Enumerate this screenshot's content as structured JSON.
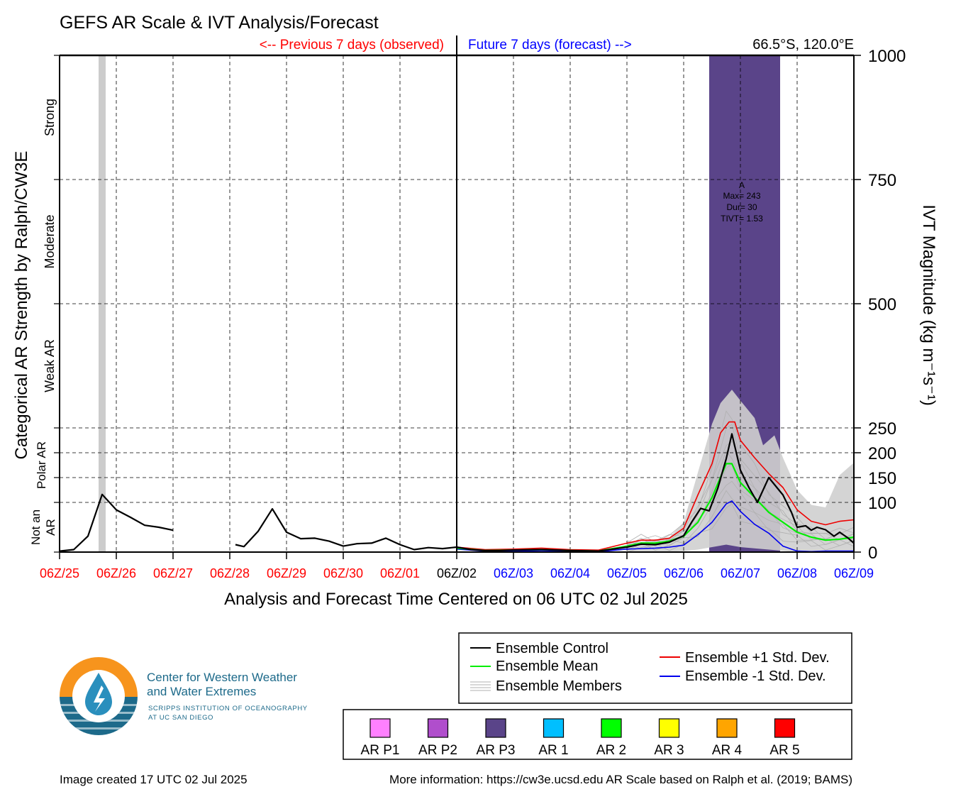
{
  "header": {
    "title": "GEFS AR Scale & IVT Analysis/Forecast",
    "previous_label": "<-- Previous 7 days (observed)",
    "future_label": "Future 7 days (forecast) -->",
    "location": "66.5°S, 120.0°E"
  },
  "colors": {
    "observed": "#ff0000",
    "forecast": "#0000ff",
    "control": "#000000",
    "mean": "#00ee00",
    "plus_std": "#ee0000",
    "minus_std": "#0000ee",
    "members": "#b0b0b0",
    "ar_p3": "#5a4489",
    "analysis_bar": "#cccccc"
  },
  "chart_data": {
    "type": "line",
    "title": "GEFS AR Scale & IVT Analysis/Forecast",
    "xlabel": "Analysis and Forecast Time Centered on 06 UTC 02 Jul 2025",
    "ylabel_left": "Categorical AR Strength by Ralph/CW3E",
    "ylabel_right": "IVT Magnitude (kg m⁻¹s⁻¹)",
    "x_tick_labels": [
      {
        "label": "06Z/25",
        "period": "observed"
      },
      {
        "label": "06Z/26",
        "period": "observed"
      },
      {
        "label": "06Z/27",
        "period": "observed"
      },
      {
        "label": "06Z/28",
        "period": "observed"
      },
      {
        "label": "06Z/29",
        "period": "observed"
      },
      {
        "label": "06Z/30",
        "period": "observed"
      },
      {
        "label": "06Z/01",
        "period": "observed"
      },
      {
        "label": "06Z/02",
        "period": "current"
      },
      {
        "label": "06Z/03",
        "period": "forecast"
      },
      {
        "label": "06Z/04",
        "period": "forecast"
      },
      {
        "label": "06Z/05",
        "period": "forecast"
      },
      {
        "label": "06Z/06",
        "period": "forecast"
      },
      {
        "label": "06Z/07",
        "period": "forecast"
      },
      {
        "label": "06Z/08",
        "period": "forecast"
      },
      {
        "label": "06Z/09",
        "period": "forecast"
      }
    ],
    "x_units": "days relative to 06Z/25",
    "xlim": [
      0,
      14
    ],
    "ylim": [
      0,
      1000
    ],
    "y_tick_labels": [
      "0",
      "100",
      "150",
      "200",
      "250",
      "500",
      "750",
      "1000"
    ],
    "y_ticks": [
      0,
      100,
      150,
      200,
      250,
      500,
      750,
      1000
    ],
    "category_labels": [
      {
        "label": "Not an AR",
        "range": [
          0,
          100
        ]
      },
      {
        "label": "Polar AR",
        "range": [
          100,
          250
        ]
      },
      {
        "label": "Weak AR",
        "range": [
          250,
          500
        ]
      },
      {
        "label": "Moderate",
        "range": [
          500,
          750
        ]
      },
      {
        "label": "Strong",
        "range": [
          750,
          1000
        ]
      }
    ],
    "ar_event": {
      "category": "AR P3",
      "x_range": [
        11.45,
        12.7
      ],
      "label": "A",
      "max": "Max= 243",
      "dur": "Dur= 30",
      "tivt": "TIVT= 1.53"
    },
    "analysis_marker_x": 0.75,
    "series": [
      {
        "name": "Ensemble Control",
        "segments": [
          [
            [
              0,
              2
            ],
            [
              0.25,
              5
            ],
            [
              0.5,
              32
            ],
            [
              0.75,
              116
            ],
            [
              1,
              85
            ],
            [
              1.25,
              70
            ],
            [
              1.5,
              54
            ],
            [
              1.75,
              50
            ],
            [
              2,
              44
            ]
          ],
          [
            [
              3.1,
              15
            ],
            [
              3.25,
              11
            ],
            [
              3.5,
              42
            ],
            [
              3.75,
              87
            ],
            [
              4,
              40
            ],
            [
              4.25,
              27
            ],
            [
              4.5,
              28
            ],
            [
              4.75,
              22
            ],
            [
              5,
              12
            ],
            [
              5.25,
              17
            ],
            [
              5.5,
              18
            ],
            [
              5.75,
              28
            ],
            [
              6,
              15
            ],
            [
              6.25,
              5
            ],
            [
              6.5,
              9
            ],
            [
              6.75,
              7
            ],
            [
              7,
              10
            ],
            [
              7.25,
              5
            ],
            [
              7.5,
              3
            ],
            [
              7.75,
              3
            ],
            [
              8,
              4
            ],
            [
              8.5,
              5
            ],
            [
              9,
              3
            ],
            [
              9.5,
              2
            ],
            [
              10,
              10
            ],
            [
              10.25,
              16
            ],
            [
              10.5,
              15
            ],
            [
              10.75,
              20
            ],
            [
              11,
              33
            ],
            [
              11.15,
              62
            ],
            [
              11.3,
              88
            ],
            [
              11.45,
              83
            ],
            [
              11.6,
              128
            ],
            [
              11.75,
              188
            ],
            [
              11.85,
              238
            ],
            [
              12,
              165
            ],
            [
              12.15,
              130
            ],
            [
              12.3,
              100
            ],
            [
              12.5,
              150
            ],
            [
              12.75,
              115
            ],
            [
              12.9,
              80
            ],
            [
              13,
              50
            ],
            [
              13.15,
              53
            ],
            [
              13.25,
              44
            ],
            [
              13.35,
              50
            ],
            [
              13.5,
              45
            ],
            [
              13.65,
              32
            ],
            [
              13.75,
              40
            ],
            [
              13.9,
              28
            ],
            [
              14,
              18
            ]
          ]
        ]
      },
      {
        "name": "Ensemble Mean",
        "points": [
          [
            7,
            8
          ],
          [
            7.5,
            3
          ],
          [
            8,
            4
          ],
          [
            8.5,
            5
          ],
          [
            9,
            3
          ],
          [
            9.5,
            2
          ],
          [
            10,
            12
          ],
          [
            10.25,
            18
          ],
          [
            10.5,
            18
          ],
          [
            10.75,
            22
          ],
          [
            11,
            32
          ],
          [
            11.25,
            60
          ],
          [
            11.5,
            110
          ],
          [
            11.75,
            178
          ],
          [
            11.85,
            178
          ],
          [
            12,
            140
          ],
          [
            12.25,
            110
          ],
          [
            12.5,
            80
          ],
          [
            12.75,
            60
          ],
          [
            13,
            40
          ],
          [
            13.25,
            30
          ],
          [
            13.5,
            24
          ],
          [
            13.75,
            26
          ],
          [
            14,
            30
          ]
        ]
      },
      {
        "name": "Ensemble +1 Std. Dev.",
        "points": [
          [
            7,
            10
          ],
          [
            7.5,
            5
          ],
          [
            8,
            6
          ],
          [
            8.5,
            8
          ],
          [
            9,
            5
          ],
          [
            9.5,
            4
          ],
          [
            10,
            18
          ],
          [
            10.25,
            24
          ],
          [
            10.5,
            24
          ],
          [
            10.75,
            28
          ],
          [
            11,
            48
          ],
          [
            11.25,
            115
          ],
          [
            11.5,
            178
          ],
          [
            11.65,
            240
          ],
          [
            11.8,
            262
          ],
          [
            11.9,
            262
          ],
          [
            12,
            225
          ],
          [
            12.25,
            190
          ],
          [
            12.5,
            158
          ],
          [
            12.75,
            130
          ],
          [
            13,
            85
          ],
          [
            13.25,
            62
          ],
          [
            13.5,
            55
          ],
          [
            13.75,
            62
          ],
          [
            14,
            65
          ]
        ]
      },
      {
        "name": "Ensemble -1 Std. Dev.",
        "points": [
          [
            7,
            6
          ],
          [
            7.5,
            2
          ],
          [
            8,
            2
          ],
          [
            8.5,
            3
          ],
          [
            9,
            2
          ],
          [
            9.5,
            1
          ],
          [
            10,
            6
          ],
          [
            10.5,
            8
          ],
          [
            10.75,
            10
          ],
          [
            11,
            14
          ],
          [
            11.25,
            35
          ],
          [
            11.5,
            60
          ],
          [
            11.75,
            97
          ],
          [
            11.85,
            103
          ],
          [
            12,
            82
          ],
          [
            12.25,
            56
          ],
          [
            12.5,
            38
          ],
          [
            12.75,
            12
          ],
          [
            13,
            2
          ],
          [
            13.25,
            1
          ],
          [
            13.5,
            2
          ],
          [
            14,
            2
          ]
        ]
      }
    ],
    "member_envelope": {
      "upper": [
        [
          10,
          18
        ],
        [
          10.5,
          25
        ],
        [
          10.75,
          30
        ],
        [
          11,
          60
        ],
        [
          11.25,
          160
        ],
        [
          11.5,
          258
        ],
        [
          11.65,
          300
        ],
        [
          11.85,
          327
        ],
        [
          12,
          305
        ],
        [
          12.25,
          270
        ],
        [
          12.4,
          215
        ],
        [
          12.6,
          235
        ],
        [
          12.75,
          190
        ],
        [
          13,
          125
        ],
        [
          13.25,
          95
        ],
        [
          13.5,
          90
        ],
        [
          13.75,
          155
        ],
        [
          14,
          180
        ]
      ],
      "lower": [
        [
          10,
          0
        ],
        [
          10.5,
          0
        ],
        [
          11,
          2
        ],
        [
          11.25,
          5
        ],
        [
          11.5,
          10
        ],
        [
          11.75,
          15
        ],
        [
          12,
          10
        ],
        [
          12.5,
          5
        ],
        [
          13,
          0
        ],
        [
          14,
          0
        ]
      ]
    }
  },
  "legend": {
    "lines": [
      {
        "label": "Ensemble Control",
        "color": "#000000"
      },
      {
        "label": "Ensemble Mean",
        "color": "#00ee00"
      },
      {
        "label": "Ensemble Members",
        "color": "#b0b0b0"
      },
      {
        "label": "Ensemble +1 Std. Dev.",
        "color": "#ee0000"
      },
      {
        "label": "Ensemble -1 Std. Dev.",
        "color": "#0000ee"
      }
    ],
    "categories": [
      {
        "label": "AR P1",
        "color": "#ff80ff"
      },
      {
        "label": "AR P2",
        "color": "#b04ecc"
      },
      {
        "label": "AR P3",
        "color": "#5a4489"
      },
      {
        "label": "AR 1",
        "color": "#00bfff"
      },
      {
        "label": "AR 2",
        "color": "#00ff00"
      },
      {
        "label": "AR 3",
        "color": "#ffff00"
      },
      {
        "label": "AR 4",
        "color": "#ffa500"
      },
      {
        "label": "AR 5",
        "color": "#ff0000"
      }
    ]
  },
  "logo": {
    "line1": "Center for Western Weather",
    "line2": "and Water Extremes",
    "line3": "SCRIPPS INSTITUTION OF OCEANOGRAPHY",
    "line4": "AT UC SAN DIEGO"
  },
  "footer": {
    "created": "Image created 17 UTC 02 Jul 2025",
    "info": "More information: https://cw3e.ucsd.edu AR Scale based on Ralph et al. (2019; BAMS)"
  }
}
